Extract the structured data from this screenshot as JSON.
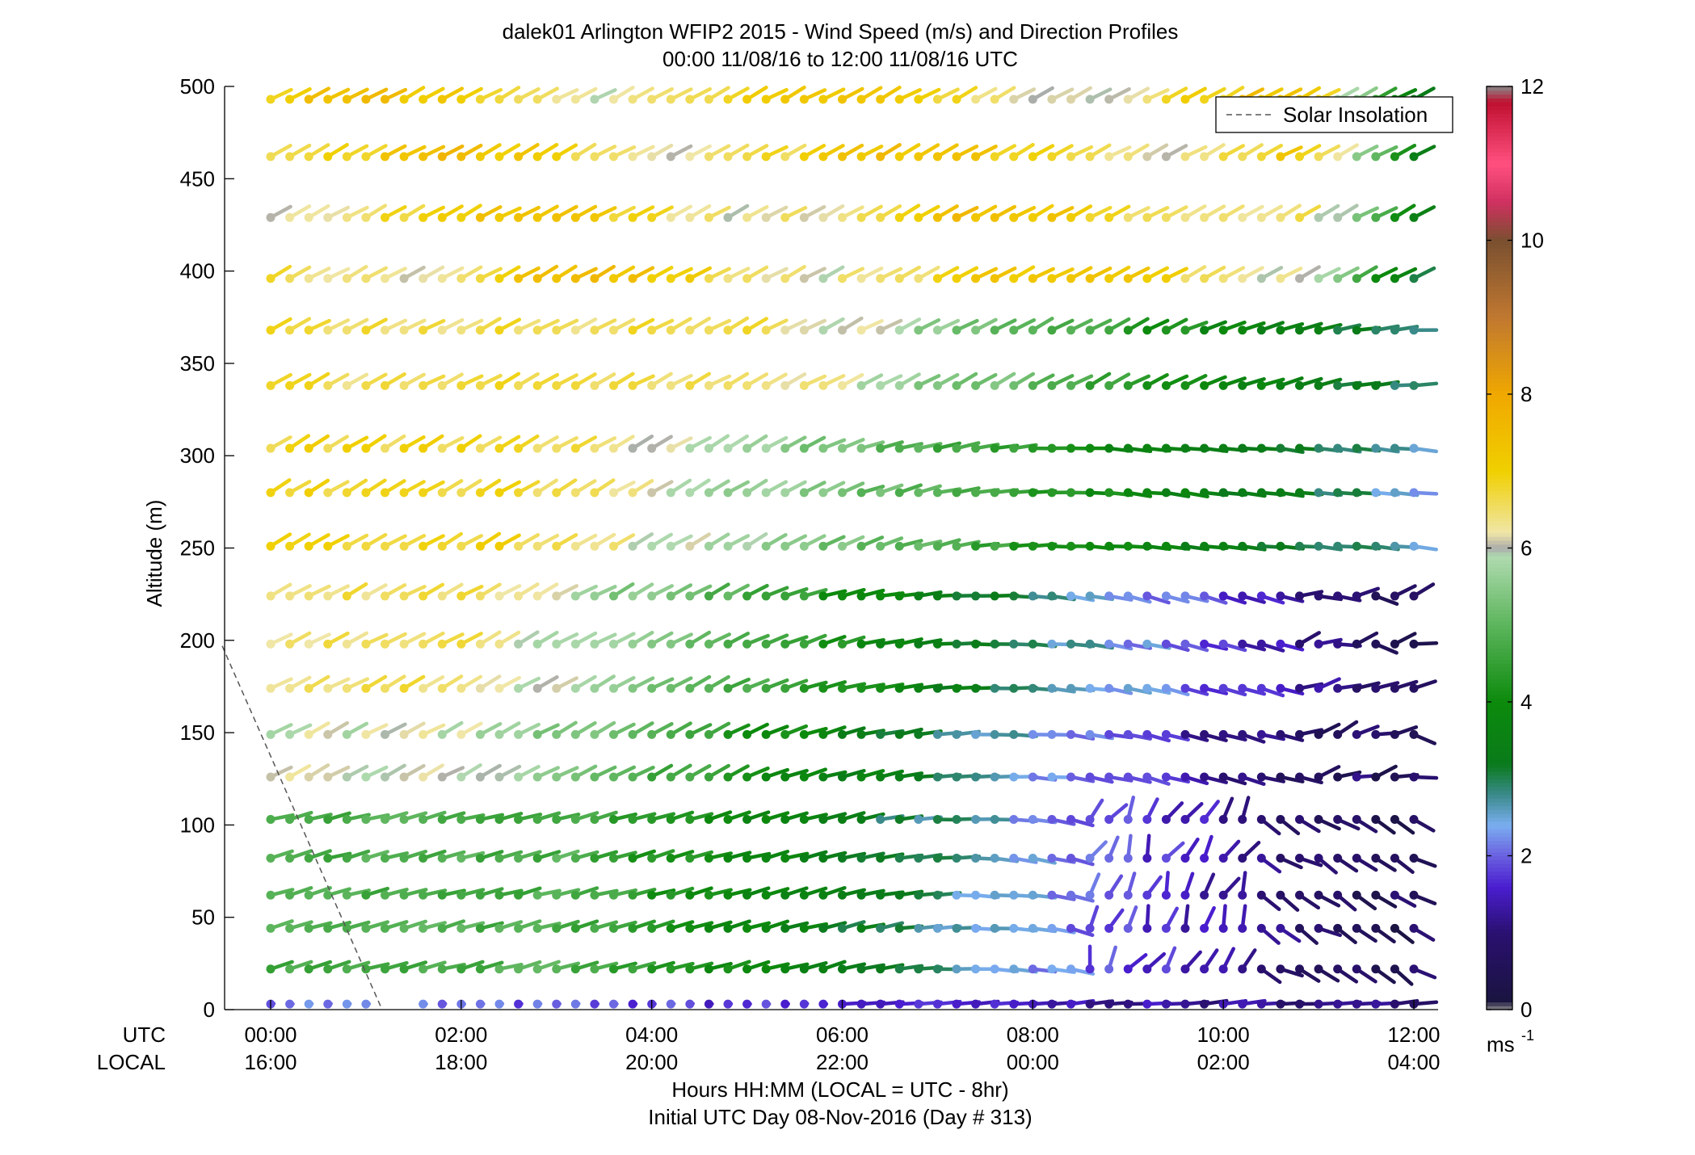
{
  "chart_data": {
    "type": "wind-barb-profile",
    "title": "dalek01 Arlington WFIP2 2015 - Wind Speed (m/s) and Direction Profiles",
    "subtitle": "00:00 11/08/16 to 12:00 11/08/16  UTC",
    "ylabel": "Altitude (m)",
    "ylim": [
      0,
      500
    ],
    "yticks": [
      0,
      50,
      100,
      150,
      200,
      250,
      300,
      350,
      400,
      450,
      500
    ],
    "xlim": [
      0,
      12
    ],
    "xticks": [
      0,
      2,
      4,
      6,
      8,
      10,
      12
    ],
    "utc_label": "UTC",
    "local_label": "LOCAL",
    "utc_tick_labels": [
      "00:00",
      "02:00",
      "04:00",
      "06:00",
      "08:00",
      "10:00",
      "12:00"
    ],
    "local_tick_labels": [
      "16:00",
      "18:00",
      "20:00",
      "22:00",
      "00:00",
      "02:00",
      "04:00"
    ],
    "xlabel_line1": "Hours HH:MM  (LOCAL = UTC - 8hr)",
    "xlabel_line2": "Initial UTC Day 08-Nov-2016 (Day # 313)",
    "legend": {
      "entries": [
        "Solar Insolation"
      ],
      "placement": "top-right",
      "line_style": "dashed",
      "line_color": "#555555"
    },
    "colorbar": {
      "min": 0,
      "max": 12,
      "ticks": [
        0,
        2,
        4,
        6,
        8,
        10,
        12
      ],
      "unit_label": "ms",
      "unit_superscript": "-1",
      "stops": [
        {
          "v": 0,
          "c": "#888888"
        },
        {
          "v": 0.12,
          "c": "#1a1440"
        },
        {
          "v": 1.0,
          "c": "#2a1070"
        },
        {
          "v": 1.6,
          "c": "#4a1ed0"
        },
        {
          "v": 2.0,
          "c": "#6a60e0"
        },
        {
          "v": 2.4,
          "c": "#7aaef0"
        },
        {
          "v": 2.8,
          "c": "#3a8a8a"
        },
        {
          "v": 3.2,
          "c": "#0a7a1a"
        },
        {
          "v": 4.0,
          "c": "#0c8a0c"
        },
        {
          "v": 5.0,
          "c": "#5cb55c"
        },
        {
          "v": 5.9,
          "c": "#b0dab0"
        },
        {
          "v": 6.0,
          "c": "#aaaaaa"
        },
        {
          "v": 6.2,
          "c": "#f0e6a8"
        },
        {
          "v": 7.0,
          "c": "#f0d000"
        },
        {
          "v": 8.0,
          "c": "#f0a800"
        },
        {
          "v": 9.0,
          "c": "#c07830"
        },
        {
          "v": 10.0,
          "c": "#7a5030"
        },
        {
          "v": 10.5,
          "c": "#d03060"
        },
        {
          "v": 11.0,
          "c": "#ff5080"
        },
        {
          "v": 11.8,
          "c": "#c01030"
        },
        {
          "v": 12.0,
          "c": "#888888"
        }
      ]
    },
    "solar_insolation_line": {
      "x": [
        0,
        1.0
      ],
      "y": [
        197,
        0
      ]
    },
    "altitudes": [
      3,
      22,
      44,
      62,
      82,
      103,
      126,
      149,
      174,
      198,
      224,
      251,
      280,
      304,
      338,
      368,
      396,
      429,
      462,
      493
    ],
    "time_step_hours": 0.2,
    "time_count": 61,
    "sample_note_speed_description": "Barbs colored by wind speed; direction of stick indicates direction"
  }
}
